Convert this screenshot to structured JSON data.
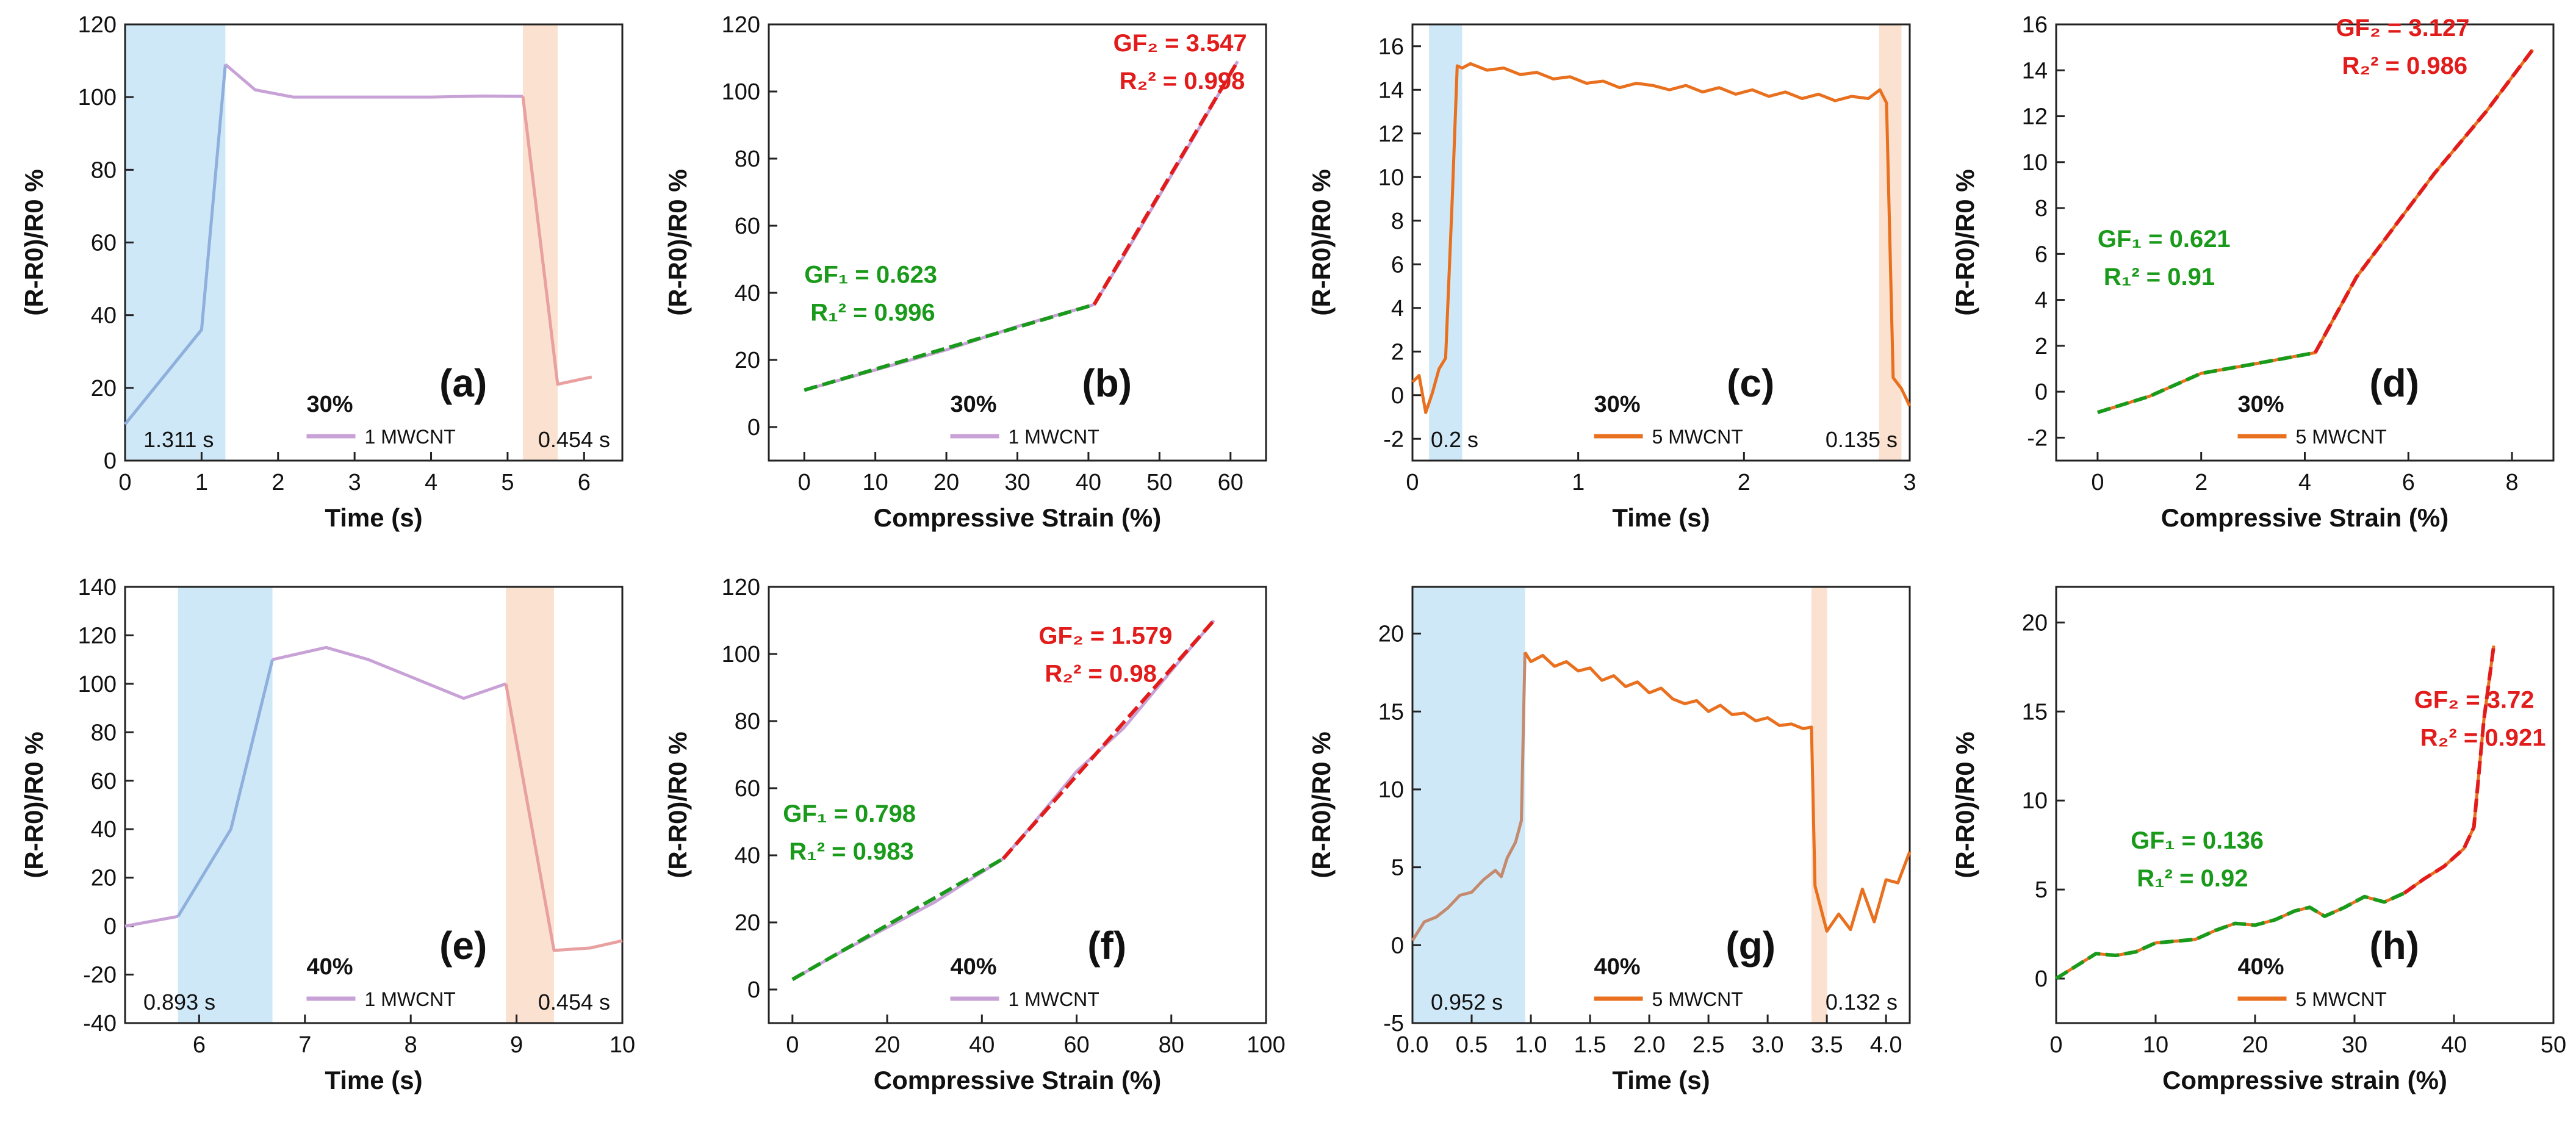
{
  "chart_data": [
    {
      "id": "a",
      "type": "line",
      "panel_label": "(a)",
      "xlabel": "Time (s)",
      "ylabel": "(R-R0)/R0 %",
      "xlim": [
        0,
        6.5
      ],
      "ylim": [
        0,
        120
      ],
      "xticks": [
        0,
        1,
        2,
        3,
        4,
        5,
        6
      ],
      "yticks": [
        0,
        20,
        40,
        60,
        80,
        100,
        120
      ],
      "bands": [
        {
          "x0": 0,
          "x1": 1.311,
          "color": "#cfe8f8",
          "label": "1.311 s",
          "label_pos": "bottom-left"
        },
        {
          "x0": 5.2,
          "x1": 5.654,
          "color": "#fbe1cf",
          "label": "0.454 s",
          "label_pos": "bottom-right"
        }
      ],
      "series": [
        {
          "name": "1 MWCNT",
          "color": "#c8a2d6",
          "colors": [
            "#8fb0dc",
            "#c8a2d6",
            "#e8a0a0"
          ],
          "split_x": [
            1.311,
            5.2
          ],
          "x": [
            0,
            1.0,
            1.311,
            1.7,
            2.2,
            3.0,
            4.0,
            4.7,
            5.2,
            5.654,
            6.1
          ],
          "y": [
            10,
            36,
            109,
            102,
            100,
            100,
            100,
            100.3,
            100.2,
            21,
            23
          ]
        }
      ],
      "strain_label": "30%",
      "legend_pos": "bottom-center"
    },
    {
      "id": "b",
      "type": "line",
      "panel_label": "(b)",
      "xlabel": "Compressive Strain (%)",
      "ylabel": "(R-R0)/R0 %",
      "xlim": [
        -5,
        65
      ],
      "ylim": [
        -10,
        120
      ],
      "xticks": [
        0,
        10,
        20,
        30,
        40,
        50,
        60
      ],
      "yticks": [
        0,
        20,
        40,
        60,
        80,
        100,
        120
      ],
      "series": [
        {
          "name": "1 MWCNT",
          "color": "#c8a2d6",
          "x": [
            0,
            10,
            20,
            30,
            40.8,
            45,
            50,
            55,
            61
          ],
          "y": [
            11,
            17,
            23,
            30,
            36.5,
            51,
            69,
            87,
            109
          ]
        }
      ],
      "fits": [
        {
          "x": [
            0,
            40.8
          ],
          "y": [
            11,
            36.5
          ],
          "color": "#1a9a1a"
        },
        {
          "x": [
            40.8,
            61
          ],
          "y": [
            36.5,
            109
          ],
          "color": "#e21b1b"
        }
      ],
      "annotations": [
        {
          "gf_text": "GF₁ = 0.623",
          "r2_text": "R₁² = 0.996",
          "color": "#1a9a1a",
          "x": 0,
          "y": 43
        },
        {
          "gf_text": "GF₂ = 3.547",
          "r2_text": "R₂² = 0.998",
          "color": "#e21b1b",
          "x": 43.5,
          "y": 112
        }
      ],
      "strain_label": "30%",
      "legend_pos": "bottom-center"
    },
    {
      "id": "c",
      "type": "line",
      "panel_label": "(c)",
      "xlabel": "Time (s)",
      "ylabel": "(R-R0)/R0 %",
      "xlim": [
        0,
        3
      ],
      "ylim": [
        -3,
        17
      ],
      "xticks": [
        0,
        1,
        2,
        3
      ],
      "yticks": [
        -2,
        0,
        2,
        4,
        6,
        8,
        10,
        12,
        14,
        16
      ],
      "bands": [
        {
          "x0": 0.1,
          "x1": 0.3,
          "color": "#cfe8f8",
          "label": "0.2 s",
          "label_pos": "bottom-left"
        },
        {
          "x0": 2.815,
          "x1": 2.95,
          "color": "#fbe1cf",
          "label": "0.135 s",
          "label_pos": "bottom-right"
        }
      ],
      "series": [
        {
          "name": "5 MWCNT",
          "color": "#e8701e",
          "x": [
            0,
            0.04,
            0.08,
            0.12,
            0.16,
            0.2,
            0.24,
            0.27,
            0.3,
            0.35,
            0.45,
            0.55,
            0.65,
            0.75,
            0.85,
            0.95,
            1.05,
            1.15,
            1.25,
            1.35,
            1.45,
            1.55,
            1.65,
            1.75,
            1.85,
            1.95,
            2.05,
            2.15,
            2.25,
            2.35,
            2.45,
            2.55,
            2.65,
            2.75,
            2.82,
            2.86,
            2.9,
            2.95,
            3.0
          ],
          "y": [
            0.6,
            0.9,
            -0.8,
            0.1,
            1.2,
            1.7,
            9.0,
            15.1,
            15.0,
            15.2,
            14.9,
            15.0,
            14.7,
            14.8,
            14.5,
            14.6,
            14.3,
            14.4,
            14.1,
            14.3,
            14.2,
            14.0,
            14.2,
            13.9,
            14.1,
            13.8,
            14.0,
            13.7,
            13.9,
            13.6,
            13.8,
            13.5,
            13.7,
            13.6,
            14.0,
            13.4,
            0.8,
            0.3,
            -0.5
          ]
        }
      ],
      "strain_label": "30%",
      "legend_pos": "bottom-center"
    },
    {
      "id": "d",
      "type": "line",
      "panel_label": "(d)",
      "xlabel": "Compressive Strain (%)",
      "ylabel": "(R-R0)/R0 %",
      "xlim": [
        -0.8,
        8.8
      ],
      "ylim": [
        -3,
        16
      ],
      "xticks": [
        0,
        2,
        4,
        6,
        8
      ],
      "yticks": [
        -2,
        0,
        2,
        4,
        6,
        8,
        10,
        12,
        14,
        16
      ],
      "series": [
        {
          "name": "5 MWCNT",
          "color": "#e8701e",
          "x": [
            0,
            1,
            2,
            3,
            4.2,
            5,
            6.5,
            7.5,
            8.4
          ],
          "y": [
            -0.9,
            -0.2,
            0.8,
            1.2,
            1.7,
            5.0,
            9.5,
            12.2,
            14.9
          ]
        }
      ],
      "fits": [
        {
          "x": [
            0,
            1,
            2,
            3,
            4.2
          ],
          "y": [
            -0.9,
            -0.2,
            0.8,
            1.2,
            1.7
          ],
          "color": "#1a9a1a"
        },
        {
          "x": [
            4.2,
            5,
            6.5,
            7.5,
            8.4
          ],
          "y": [
            1.7,
            5.0,
            9.5,
            12.2,
            14.9
          ],
          "color": "#e21b1b"
        }
      ],
      "annotations": [
        {
          "gf_text": "GF₁ = 0.621",
          "r2_text": "R₁² = 0.91",
          "color": "#1a9a1a",
          "x": 0,
          "y": 6.3
        },
        {
          "gf_text": "GF₂ = 3.127",
          "r2_text": "R₂² = 0.986",
          "color": "#e21b1b",
          "x": 4.6,
          "y": 15.5
        }
      ],
      "strain_label": "30%",
      "legend_pos": "bottom-center"
    },
    {
      "id": "e",
      "type": "line",
      "panel_label": "(e)",
      "xlabel": "Time (s)",
      "ylabel": "(R-R0)/R0 %",
      "xlim": [
        5.3,
        10
      ],
      "ylim": [
        -40,
        140
      ],
      "xticks": [
        6,
        7,
        8,
        9,
        10
      ],
      "yticks": [
        -40,
        -20,
        0,
        20,
        40,
        60,
        80,
        100,
        120,
        140
      ],
      "bands": [
        {
          "x0": 5.8,
          "x1": 6.693,
          "color": "#cfe8f8",
          "label": "0.893 s",
          "label_pos": "bottom-left"
        },
        {
          "x0": 8.9,
          "x1": 9.354,
          "color": "#fbe1cf",
          "label": "0.454 s",
          "label_pos": "bottom-right"
        }
      ],
      "series": [
        {
          "name": "1 MWCNT",
          "color": "#c8a2d6",
          "colors": [
            "#c8a2d6",
            "#8fb0dc",
            "#c8a2d6",
            "#e8a0a0"
          ],
          "split_x": [
            5.8,
            6.693,
            8.9
          ],
          "x": [
            5.3,
            5.8,
            6.3,
            6.693,
            7.2,
            7.6,
            8.5,
            8.9,
            9.354,
            9.7,
            10
          ],
          "y": [
            0,
            4,
            40,
            110,
            115,
            110,
            94,
            100,
            -10,
            -9,
            -6
          ]
        }
      ],
      "strain_label": "40%",
      "legend_pos": "bottom-center"
    },
    {
      "id": "f",
      "type": "line",
      "panel_label": "(f)",
      "xlabel": "Compressive Strain (%)",
      "ylabel": "(R-R0)/R0 %",
      "xlim": [
        -5,
        100
      ],
      "ylim": [
        -10,
        120
      ],
      "xticks": [
        0,
        20,
        40,
        60,
        80,
        100
      ],
      "yticks": [
        0,
        20,
        40,
        60,
        80,
        100,
        120
      ],
      "series": [
        {
          "name": "1 MWCNT",
          "color": "#c8a2d6",
          "x": [
            0,
            10,
            20,
            30,
            44.5,
            50,
            60,
            70,
            80,
            89
          ],
          "y": [
            3,
            11,
            18.5,
            26,
            39,
            48,
            65,
            78,
            95,
            110
          ]
        }
      ],
      "fits": [
        {
          "x": [
            0,
            44.5
          ],
          "y": [
            3,
            39
          ],
          "color": "#1a9a1a"
        },
        {
          "x": [
            44.5,
            89
          ],
          "y": [
            39,
            110
          ],
          "color": "#e21b1b"
        }
      ],
      "annotations": [
        {
          "gf_text": "GF₁ = 0.798",
          "r2_text": "R₁² = 0.983",
          "color": "#1a9a1a",
          "x": -2,
          "y": 50
        },
        {
          "gf_text": "GF₂ = 1.579",
          "r2_text": "R₂² = 0.98",
          "color": "#e21b1b",
          "x": 52,
          "y": 103
        }
      ],
      "strain_label": "40%",
      "legend_pos": "bottom-center"
    },
    {
      "id": "g",
      "type": "line",
      "panel_label": "(g)",
      "xlabel": "Time (s)",
      "ylabel": "(R-R0)/R0 %",
      "xlim": [
        0,
        4.2
      ],
      "ylim": [
        -5,
        23
      ],
      "xticks": [
        0.0,
        0.5,
        1.0,
        1.5,
        2.0,
        2.5,
        3.0,
        3.5,
        4.0
      ],
      "yticks": [
        -5,
        0,
        5,
        10,
        15,
        20
      ],
      "bands": [
        {
          "x0": 0,
          "x1": 0.952,
          "color": "#cfe8f8",
          "label": "0.952 s",
          "label_pos": "bottom-left"
        },
        {
          "x0": 3.37,
          "x1": 3.502,
          "color": "#fbe1cf",
          "label": "0.132 s",
          "label_pos": "bottom-right"
        }
      ],
      "series": [
        {
          "name": "5 MWCNT",
          "color": "#e8701e",
          "colors": [
            "#c48a6e",
            "#e8701e"
          ],
          "split_x": [
            0.95
          ],
          "x": [
            0,
            0.1,
            0.2,
            0.3,
            0.4,
            0.5,
            0.6,
            0.7,
            0.75,
            0.8,
            0.87,
            0.92,
            0.95,
            1.0,
            1.1,
            1.2,
            1.3,
            1.4,
            1.5,
            1.6,
            1.7,
            1.8,
            1.9,
            2.0,
            2.1,
            2.2,
            2.3,
            2.4,
            2.5,
            2.6,
            2.7,
            2.8,
            2.9,
            3.0,
            3.1,
            3.2,
            3.3,
            3.37,
            3.4,
            3.5,
            3.6,
            3.7,
            3.8,
            3.9,
            4.0,
            4.1,
            4.2
          ],
          "y": [
            0.3,
            1.5,
            1.8,
            2.4,
            3.2,
            3.4,
            4.2,
            4.8,
            4.4,
            5.6,
            6.6,
            8.0,
            18.8,
            18.2,
            18.6,
            17.9,
            18.2,
            17.6,
            17.8,
            17.0,
            17.3,
            16.6,
            16.9,
            16.2,
            16.5,
            15.8,
            15.5,
            15.7,
            15.0,
            15.4,
            14.8,
            14.9,
            14.4,
            14.6,
            14.1,
            14.2,
            13.9,
            14.0,
            3.8,
            0.9,
            2.0,
            1.0,
            3.6,
            1.5,
            4.2,
            4.0,
            6.0
          ]
        }
      ],
      "strain_label": "40%",
      "legend_pos": "bottom-center"
    },
    {
      "id": "h",
      "type": "line",
      "panel_label": "(h)",
      "xlabel": "Compressive strain (%)",
      "ylabel": "(R-R0)/R0 %",
      "xlim": [
        0,
        50
      ],
      "ylim": [
        -2.5,
        22
      ],
      "xticks": [
        0,
        10,
        20,
        30,
        40,
        50
      ],
      "yticks": [
        0,
        5,
        10,
        15,
        20
      ],
      "series": [
        {
          "name": "5 MWCNT",
          "color": "#e8701e",
          "x": [
            0,
            2,
            4,
            6,
            8,
            10,
            12,
            14,
            16,
            18,
            20,
            22,
            24,
            25.5,
            27,
            29,
            31,
            33,
            35,
            37,
            39,
            41,
            42,
            43,
            44
          ],
          "y": [
            0,
            0.7,
            1.4,
            1.3,
            1.5,
            2.0,
            2.1,
            2.2,
            2.7,
            3.1,
            3.0,
            3.3,
            3.8,
            4.0,
            3.5,
            4.0,
            4.6,
            4.3,
            4.8,
            5.6,
            6.3,
            7.3,
            8.5,
            14.5,
            18.7
          ]
        }
      ],
      "fits": [
        {
          "x": [
            0,
            2,
            4,
            6,
            8,
            10,
            12,
            14,
            16,
            18,
            20,
            22,
            24,
            25.5,
            27,
            29,
            31,
            33,
            35
          ],
          "y": [
            0,
            0.7,
            1.4,
            1.3,
            1.5,
            2.0,
            2.1,
            2.2,
            2.7,
            3.1,
            3.0,
            3.3,
            3.8,
            4.0,
            3.5,
            4.0,
            4.6,
            4.3,
            4.8
          ],
          "color": "#1a9a1a"
        },
        {
          "x": [
            35,
            37,
            39,
            41,
            42,
            43,
            44
          ],
          "y": [
            4.8,
            5.6,
            6.3,
            7.3,
            8.5,
            14.5,
            18.7
          ],
          "color": "#e21b1b"
        }
      ],
      "annotations": [
        {
          "gf_text": "GF₁ = 0.136",
          "r2_text": "R₁² = 0.92",
          "color": "#1a9a1a",
          "x": 7.5,
          "y": 7.3
        },
        {
          "gf_text": "GF₂ = 3.72",
          "r2_text": "R₂² = 0.921",
          "color": "#e21b1b",
          "x": 36,
          "y": 15.2
        }
      ],
      "strain_label": "40%",
      "legend_pos": "bottom-center"
    }
  ]
}
